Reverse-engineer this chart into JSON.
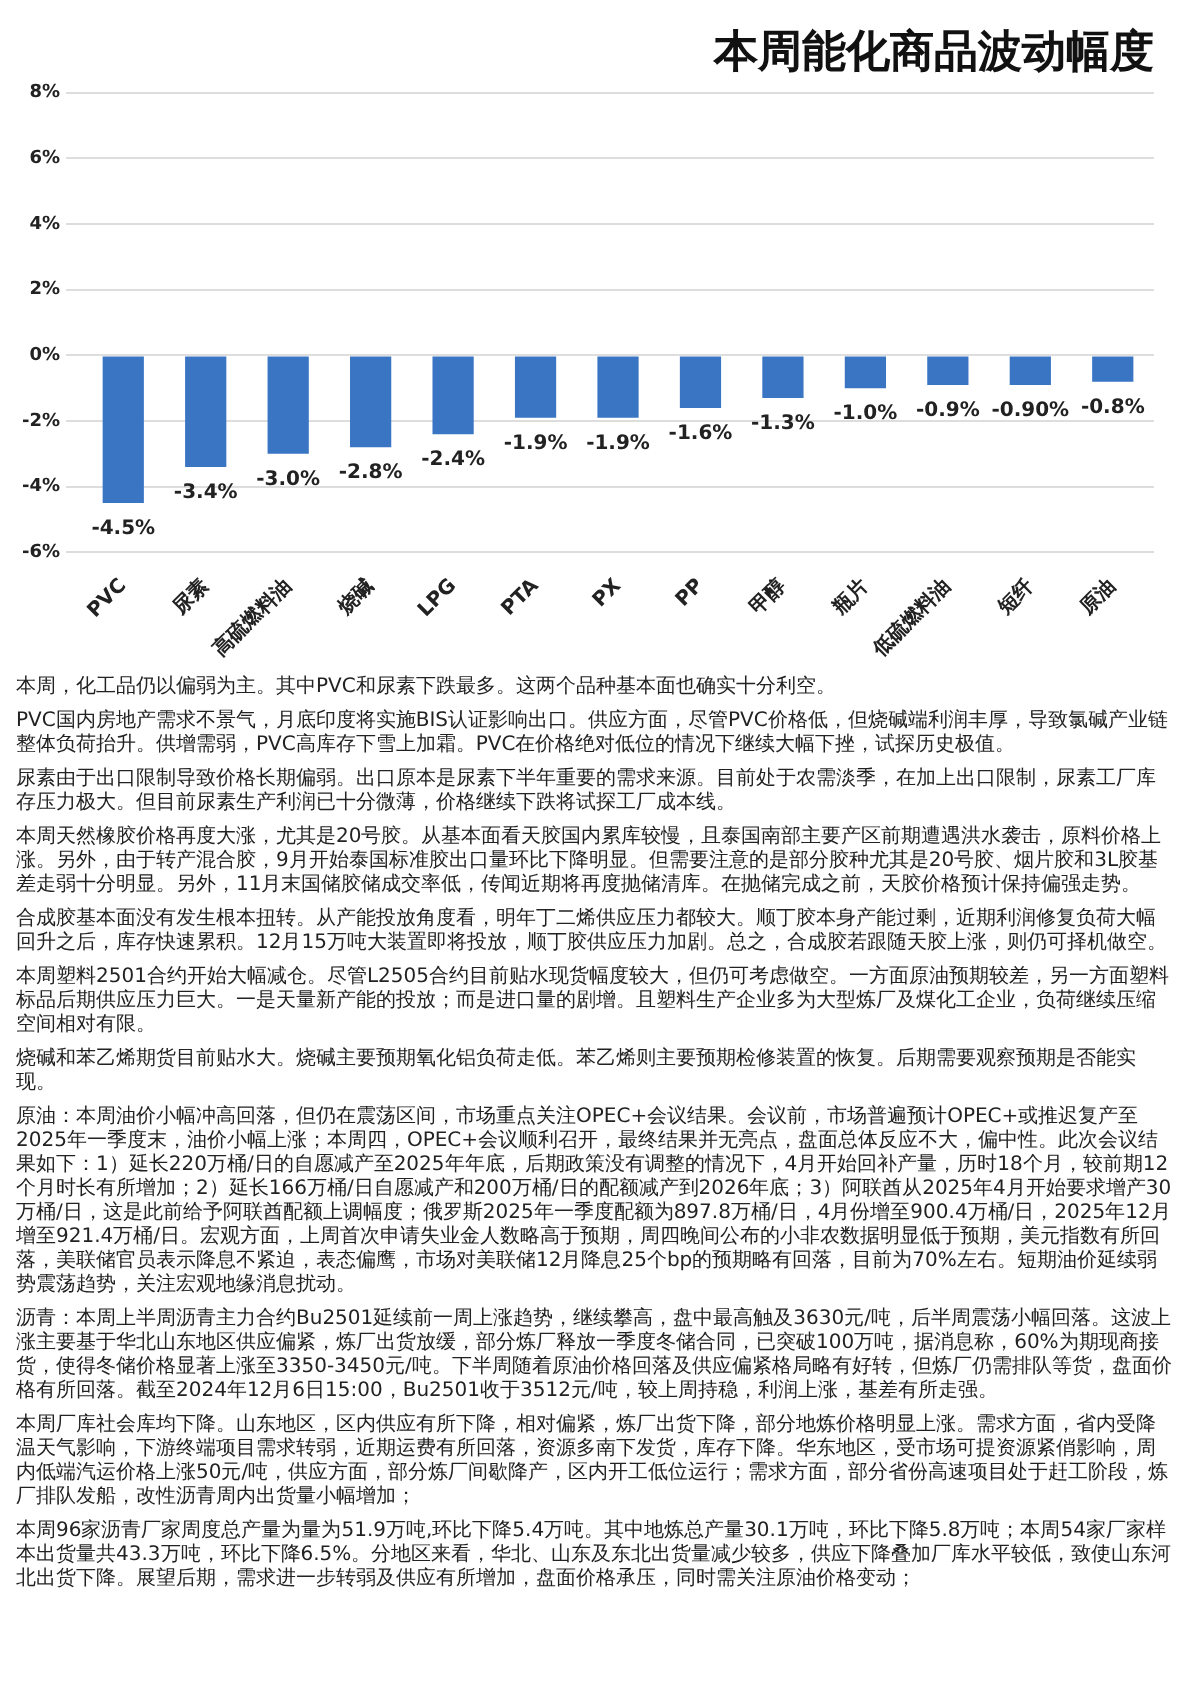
{
  "chart_data": {
    "type": "bar",
    "title": "本周能化商品波动幅度",
    "categories": [
      "PVC",
      "尿素",
      "高硫燃料油",
      "烧碱",
      "LPG",
      "PTA",
      "PX",
      "PP",
      "甲醇",
      "瓶片",
      "低硫燃料油",
      "短纤",
      "原油"
    ],
    "series": [
      {
        "color": "#3a75c4",
        "values": [
          -4.5,
          -3.4,
          -3.0,
          -2.8,
          -2.4,
          -1.9,
          -1.9,
          -1.6,
          -1.3,
          -1.0,
          -0.9,
          -0.9,
          -0.8
        ],
        "value_labels": [
          "-4.5%",
          "-3.4%",
          "-3.0%",
          "-2.8%",
          "-2.4%",
          "-1.9%",
          "-1.9%",
          "-1.6%",
          "-1.3%",
          "-1.0%",
          "-0.9%",
          "-0.90%",
          "-0.8%"
        ]
      }
    ],
    "ylim": [
      -6,
      8
    ],
    "yticks": [
      {
        "value": -6,
        "label": "-6%"
      },
      {
        "value": -4,
        "label": "-4%"
      },
      {
        "value": -2,
        "label": "-2%"
      },
      {
        "value": 0,
        "label": "0%"
      },
      {
        "value": 2,
        "label": "2%"
      },
      {
        "value": 4,
        "label": "4%"
      },
      {
        "value": 6,
        "label": "6%"
      },
      {
        "value": 8,
        "label": "8%"
      }
    ],
    "grid": "y",
    "legend": false,
    "annotations": [
      "本周，化工品仍以偏弱为主。其中PVC和尿素下跌最多。这两个品种基本面也确实十分利空。",
      "PVC国内房地产需求不景气，月底印度将实施BIS认证影响出口。供应方面，尽管PVC价格低，但烧碱端利润丰厚，导致氯碱产业链整体负荷抬升。供增需弱，PVC高库存下雪上加霜。PVC在价格绝对低位的情况下继续大幅下挫，试探历史极值。",
      "尿素由于出口限制导致价格长期偏弱。出口原本是尿素下半年重要的需求来源。目前处于农需淡季，在加上出口限制，尿素工厂库存压力极大。但目前尿素生产利润已十分微薄，价格继续下跌将试探工厂成本线。",
      "本周天然橡胶价格再度大涨，尤其是20号胶。从基本面看天胶国内累库较慢，且泰国南部主要产区前期遭遇洪水袭击，原料价格上涨。另外，由于转产混合胶，9月开始泰国标准胶出口量环比下降明显。但需要注意的是部分胶种尤其是20号胶、烟片胶和3L胶基差走弱十分明显。另外，11月末国储胶储成交率低，传闻近期将再度抛储清库。在抛储完成之前，天胶价格预计保持偏强走势。",
      "合成胶基本面没有发生根本扭转。从产能投放角度看，明年丁二烯供应压力都较大。顺丁胶本身产能过剩，近期利润修复负荷大幅回升之后，库存快速累积。12月15万吨大装置即将投放，顺丁胶供应压力加剧。总之，合成胶若跟随天胶上涨，则仍可择机做空。",
      "本周塑料2501合约开始大幅减仓。尽管L2505合约目前贴水现货幅度较大，但仍可考虑做空。一方面原油预期较差，另一方面塑料标品后期供应压力巨大。一是天量新产能的投放；而是进口量的剧增。且塑料生产企业多为大型炼厂及煤化工企业，负荷继续压缩空间相对有限。",
      "烧碱和苯乙烯期货目前贴水大。烧碱主要预期氧化铝负荷走低。苯乙烯则主要预期检修装置的恢复。后期需要观察预期是否能实现。",
      "原油：本周油价小幅冲高回落，但仍在震荡区间，市场重点关注OPEC+会议结果。会议前，市场普遍预计OPEC+或推迟复产至2025年一季度末，油价小幅上涨；本周四，OPEC+会议顺利召开，最终结果并无亮点，盘面总体反应不大，偏中性。此次会议结果如下：1）延长220万桶/日的自愿减产至2025年年底，后期政策没有调整的情况下，4月开始回补产量，历时18个月，较前期12个月时长有所增加；2）延长166万桶/日自愿减产和200万桶/日的配额减产到2026年底；3）阿联酋从2025年4月开始要求增产30万桶/日，这是此前给予阿联酋配额上调幅度；俄罗斯2025年一季度配额为897.8万桶/日，4月份增至900.4万桶/日，2025年12月增至921.4万桶/日。宏观方面，上周首次申请失业金人数略高于预期，周四晚间公布的小非农数据明显低于预期，美元指数有所回落，美联储官员表示降息不紧迫，表态偏鹰，市场对美联储12月降息25个bp的预期略有回落，目前为70%左右。短期油价延续弱势震荡趋势，关注宏观地缘消息扰动。",
      "沥青：本周上半周沥青主力合约Bu2501延续前一周上涨趋势，继续攀高，盘中最高触及3630元/吨，后半周震荡小幅回落。这波上涨主要基于华北山东地区供应偏紧，炼厂出货放缓，部分炼厂释放一季度冬储合同，已突破100万吨，据消息称，60%为期现商接货，使得冬储价格显著上涨至3350-3450元/吨。下半周随着原油价格回落及供应偏紧格局略有好转，但炼厂仍需排队等货，盘面价格有所回落。截至2024年12月6日15:00，Bu2501收于3512元/吨，较上周持稳，利润上涨，基差有所走强。",
      "本周厂库社会库均下降。山东地区，区内供应有所下降，相对偏紧，炼厂出货下降，部分地炼价格明显上涨。需求方面，省内受降温天气影响，下游终端项目需求转弱，近期运费有所回落，资源多南下发货，库存下降。华东地区，受市场可提资源紧俏影响，周内低端汽运价格上涨50元/吨，供应方面，部分炼厂间歇降产，区内开工低位运行；需求方面，部分省份高速项目处于赶工阶段，炼厂排队发船，改性沥青周内出货量小幅增加；",
      "本周96家沥青厂家周度总产量为量为51.9万吨,环比下降5.4万吨。其中地炼总产量30.1万吨，环比下降5.8万吨；本周54家厂家样本出货量共43.3万吨，环比下降6.5%。分地区来看，华北、山东及东北出货量减少较多，供应下降叠加厂库水平较低，致使山东河北出货下降。展望后期，需求进一步转弱及供应有所增加，盘面价格承压，同时需关注原油价格变动；"
    ]
  }
}
